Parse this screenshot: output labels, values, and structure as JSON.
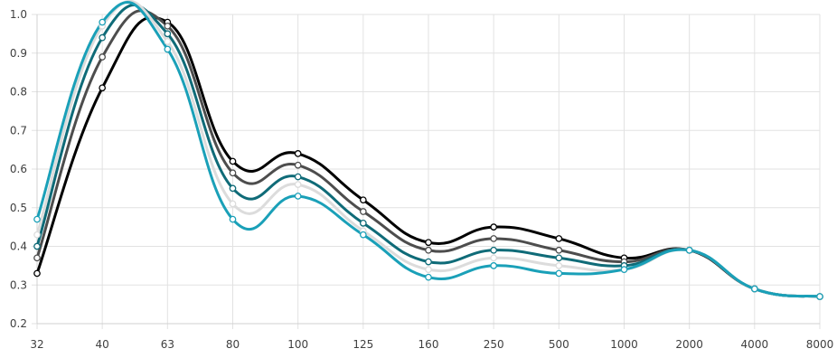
{
  "chart_data": {
    "type": "line",
    "categories": [
      "32",
      "40",
      "63",
      "80",
      "100",
      "125",
      "160",
      "250",
      "500",
      "1000",
      "2000",
      "4000",
      "8000"
    ],
    "y_ticks": [
      "0.2",
      "0.3",
      "0.4",
      "0.5",
      "0.6",
      "0.7",
      "0.8",
      "0.9",
      "1.0"
    ],
    "ylim": [
      0.2,
      1.0
    ],
    "grid": true,
    "legend": "none",
    "series": [
      {
        "color": "#000000",
        "values": [
          0.33,
          0.81,
          0.98,
          0.62,
          0.64,
          0.52,
          0.41,
          0.45,
          0.42,
          0.37,
          0.39,
          0.29,
          0.27
        ]
      },
      {
        "color": "#4d4d4d",
        "values": [
          0.37,
          0.89,
          0.97,
          0.59,
          0.61,
          0.49,
          0.39,
          0.42,
          0.39,
          0.36,
          0.39,
          0.29,
          0.27
        ]
      },
      {
        "color": "#0f6b78",
        "values": [
          0.4,
          0.94,
          0.95,
          0.55,
          0.58,
          0.46,
          0.36,
          0.39,
          0.37,
          0.35,
          0.39,
          0.29,
          0.27
        ]
      },
      {
        "color": "#dcdcdc",
        "values": [
          0.43,
          0.97,
          0.93,
          0.51,
          0.56,
          0.44,
          0.34,
          0.37,
          0.35,
          0.34,
          0.39,
          0.29,
          0.27
        ]
      },
      {
        "color": "#1aa0b8",
        "values": [
          0.47,
          0.98,
          0.91,
          0.47,
          0.53,
          0.43,
          0.32,
          0.35,
          0.33,
          0.34,
          0.39,
          0.29,
          0.27
        ]
      }
    ]
  }
}
